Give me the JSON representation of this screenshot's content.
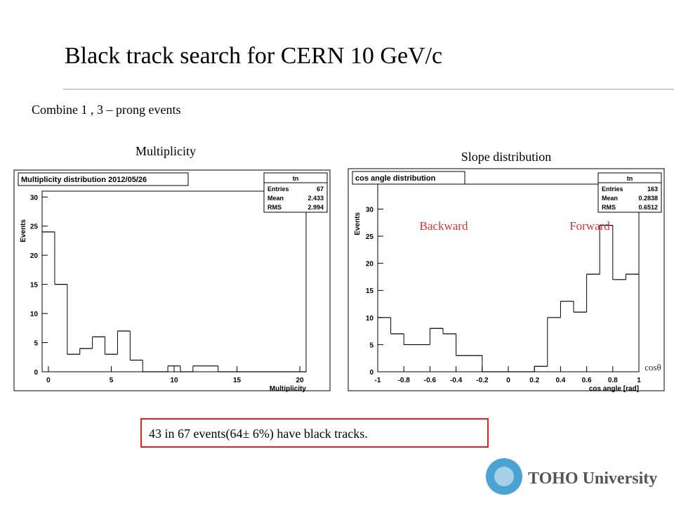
{
  "slide": {
    "title": "Black track search for CERN 10 GeV/c",
    "subtitle": "Combine 1 , 3 – prong events",
    "left_caption": "Multiplicity",
    "right_caption": "Slope distribution",
    "conclusion": "43 in 67 events(64± 6%) have black tracks.",
    "logo": "TOHO University"
  },
  "chart_data": [
    {
      "type": "histogram",
      "title": "Multiplicity distribution 2012/05/26",
      "x_label": "Multiplicity",
      "y_label": "Events",
      "bins": [
        -0.5,
        0.5,
        1.5,
        2.5,
        3.5,
        4.5,
        5.5,
        6.5,
        7.5,
        8.5,
        9.5,
        10.5,
        11.5,
        12.5,
        13.5,
        14.5,
        15.5,
        16.5,
        17.5,
        18.5,
        19.5,
        20.5
      ],
      "counts": [
        24,
        15,
        3,
        4,
        6,
        3,
        7,
        2,
        0,
        0,
        1,
        0,
        1,
        1,
        0,
        0,
        0,
        0,
        0,
        0,
        0
      ],
      "xlim": [
        -0.5,
        20.5
      ],
      "ylim": [
        0,
        31
      ],
      "xticks": [
        0,
        5,
        10,
        15,
        20
      ],
      "yticks": [
        0,
        5,
        10,
        15,
        20,
        25,
        30
      ],
      "stats": {
        "name": "tn",
        "rows": [
          [
            "Entries",
            67
          ],
          [
            "Mean",
            2.433
          ],
          [
            "RMS",
            2.994
          ]
        ]
      }
    },
    {
      "type": "histogram",
      "title": "cos angle distribution",
      "x_label": "cos angle [rad]",
      "y_label": "Events",
      "bins": [
        -1,
        -0.9,
        -0.8,
        -0.7,
        -0.6,
        -0.5,
        -0.4,
        -0.3,
        -0.2,
        -0.1,
        0,
        0.1,
        0.2,
        0.3,
        0.4,
        0.5,
        0.6,
        0.7,
        0.8,
        0.9,
        1
      ],
      "counts": [
        10,
        7,
        5,
        5,
        8,
        7,
        3,
        3,
        0,
        0,
        0,
        0,
        1,
        10,
        13,
        11,
        18,
        27,
        17,
        18
      ],
      "xlim": [
        -1,
        1
      ],
      "ylim": [
        0,
        34.6
      ],
      "xticks": [
        -1,
        -0.8,
        -0.6,
        -0.4,
        -0.2,
        0,
        0.2,
        0.4,
        0.6,
        0.8,
        1
      ],
      "yticks": [
        0,
        5,
        10,
        15,
        20,
        25,
        30
      ],
      "annotations": [
        "Backward",
        "Forward",
        "cosθ"
      ],
      "stats": {
        "name": "tn",
        "rows": [
          [
            "Entries",
            163
          ],
          [
            "Mean",
            0.2838
          ],
          [
            "RMS",
            0.6512
          ]
        ]
      }
    }
  ]
}
